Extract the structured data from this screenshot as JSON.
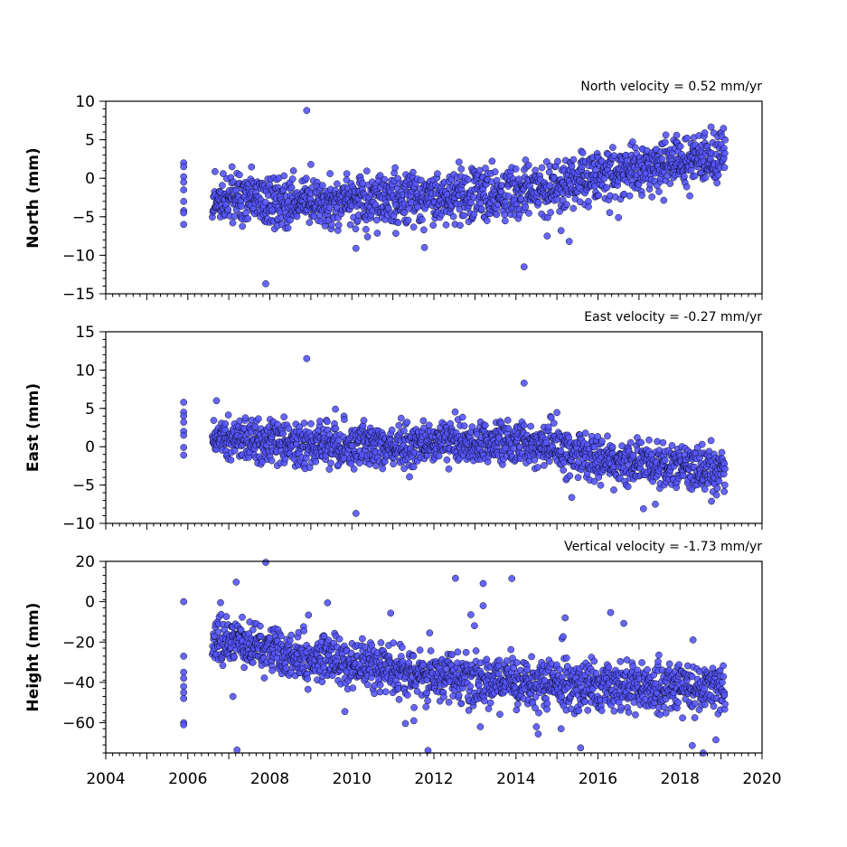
{
  "chart_data": [
    {
      "type": "scatter",
      "ylabel": "North (mm)",
      "annotation": "North velocity = 0.52 mm/yr",
      "xlim": [
        2004,
        2020
      ],
      "ylim": [
        -15,
        10
      ],
      "yticks": [
        10,
        5,
        0,
        -5,
        -10,
        -15
      ],
      "ytick_labels": [
        "10",
        "5",
        "0",
        "−5",
        "−10",
        "−15"
      ],
      "color": "#5555ff",
      "velocity_mm_per_yr": 0.52,
      "early_points": {
        "x": 2005.9,
        "y": [
          2.0,
          1.5,
          0.2,
          -0.5,
          -1.5,
          -3.0,
          -4.2,
          -4.5,
          -6.0
        ]
      },
      "trend": [
        [
          2006.6,
          -2.5
        ],
        [
          2008.0,
          -3.0
        ],
        [
          2010.0,
          -3.2
        ],
        [
          2012.0,
          -2.5
        ],
        [
          2014.0,
          -1.8
        ],
        [
          2015.0,
          -1.0
        ],
        [
          2016.0,
          0.2
        ],
        [
          2017.0,
          1.2
        ],
        [
          2018.0,
          2.2
        ],
        [
          2019.1,
          3.0
        ]
      ],
      "outliers": [
        [
          2007.9,
          -13.7
        ],
        [
          2008.9,
          8.8
        ],
        [
          2009.0,
          1.8
        ],
        [
          2014.2,
          -11.5
        ],
        [
          2015.3,
          -8.2
        ],
        [
          2015.1,
          -6.8
        ],
        [
          2010.1,
          -9.1
        ],
        [
          2016.5,
          -5.1
        ]
      ]
    },
    {
      "type": "scatter",
      "ylabel": "East (mm)",
      "annotation": "East velocity = -0.27 mm/yr",
      "xlim": [
        2004,
        2020
      ],
      "ylim": [
        -10,
        15
      ],
      "yticks": [
        15,
        10,
        5,
        0,
        -5,
        -10
      ],
      "ytick_labels": [
        "15",
        "10",
        "5",
        "0",
        "−5",
        "−10"
      ],
      "color": "#5555ff",
      "velocity_mm_per_yr": -0.27,
      "early_points": {
        "x": 2005.9,
        "y": [
          5.8,
          4.5,
          4.0,
          3.2,
          2.0,
          1.5,
          -0.1,
          -1.1
        ]
      },
      "trend": [
        [
          2006.6,
          1.5
        ],
        [
          2008.0,
          0.5
        ],
        [
          2010.0,
          0.2
        ],
        [
          2012.0,
          0.5
        ],
        [
          2013.5,
          0.5
        ],
        [
          2015.0,
          0.0
        ],
        [
          2016.0,
          -1.5
        ],
        [
          2017.0,
          -2.2
        ],
        [
          2018.0,
          -2.5
        ],
        [
          2019.1,
          -3.0
        ]
      ],
      "outliers": [
        [
          2008.9,
          11.5
        ],
        [
          2014.2,
          8.3
        ],
        [
          2010.1,
          -8.7
        ],
        [
          2006.7,
          6.0
        ],
        [
          2009.6,
          4.9
        ],
        [
          2017.4,
          -7.5
        ]
      ]
    },
    {
      "type": "scatter",
      "ylabel": "Height (mm)",
      "annotation": "Vertical velocity = -1.73 mm/yr",
      "xlim": [
        2004,
        2020
      ],
      "ylim": [
        -75,
        20
      ],
      "yticks": [
        20,
        0,
        -20,
        -40,
        -60
      ],
      "ytick_labels": [
        "20",
        "0",
        "−20",
        "−40",
        "−60"
      ],
      "xticks": [
        2004,
        2006,
        2008,
        2010,
        2012,
        2014,
        2016,
        2018,
        2020
      ],
      "xtick_labels": [
        "2004",
        "2006",
        "2008",
        "2010",
        "2012",
        "2014",
        "2016",
        "2018",
        "2020"
      ],
      "color": "#5555ff",
      "velocity_mm_per_yr": -1.73,
      "early_points": {
        "x": 2005.9,
        "y": [
          0.0,
          -27.0,
          -35.0,
          -38.0,
          -42.0,
          -45.0,
          -48.0,
          -60.0,
          -61.0
        ]
      },
      "trend": [
        [
          2006.6,
          -18.0
        ],
        [
          2007.5,
          -22.0
        ],
        [
          2008.5,
          -26.0
        ],
        [
          2010.0,
          -30.0
        ],
        [
          2011.0,
          -34.0
        ],
        [
          2012.0,
          -37.0
        ],
        [
          2014.0,
          -40.0
        ],
        [
          2016.0,
          -42.0
        ],
        [
          2018.0,
          -43.0
        ],
        [
          2019.1,
          -42.0
        ]
      ],
      "outliers": [
        [
          2007.9,
          19.5
        ],
        [
          2007.2,
          -73.5
        ],
        [
          2013.2,
          9.0
        ],
        [
          2013.9,
          11.5
        ],
        [
          2013.2,
          -2.0
        ],
        [
          2015.2,
          -8.0
        ],
        [
          2006.8,
          -0.5
        ],
        [
          2007.1,
          -47.0
        ],
        [
          2014.5,
          -62.0
        ],
        [
          2015.1,
          -63.0
        ]
      ]
    }
  ]
}
